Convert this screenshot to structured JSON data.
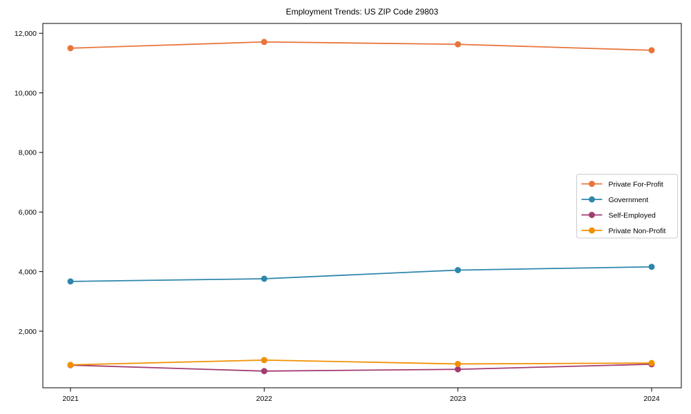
{
  "title": "Employment Trends: US ZIP Code 29803",
  "chart_data": {
    "type": "line",
    "title": "Employment Trends: US ZIP Code 29803",
    "x": [
      "2021",
      "2022",
      "2023",
      "2024"
    ],
    "series": [
      {
        "name": "Private For-Profit",
        "color": "#E8743B",
        "values": [
          11500,
          11710,
          11630,
          11430
        ]
      },
      {
        "name": "Government",
        "color": "#2E86AB",
        "values": [
          3670,
          3760,
          4050,
          4160
        ]
      },
      {
        "name": "Self-Employed",
        "color": "#A23B72",
        "values": [
          860,
          660,
          720,
          890
        ]
      },
      {
        "name": "Private Non-Profit",
        "color": "#F18F01",
        "values": [
          870,
          1030,
          900,
          930
        ]
      }
    ],
    "xlabel": "",
    "ylabel": "",
    "ylim": [
      100,
      12330
    ],
    "yticks": [
      2000,
      4000,
      6000,
      8000,
      10000,
      12000
    ],
    "ytick_labels": [
      "2,000",
      "4,000",
      "6,000",
      "8,000",
      "10,000",
      "12,000"
    ],
    "grid": false,
    "legend_position": "center right",
    "marker": "circle",
    "line_width": 1.8,
    "marker_radius": 4.5,
    "background_color": "#ffffff",
    "axis_color": "#000000",
    "legend_border_color": "#cccccc"
  }
}
